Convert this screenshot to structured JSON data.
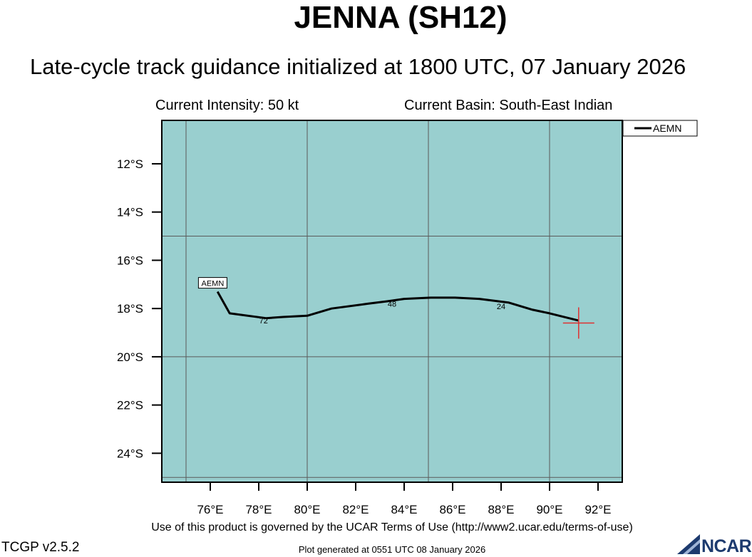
{
  "header": {
    "title": "JENNA (SH12)",
    "subtitle": "Late-cycle track guidance initialized at 1800 UTC, 07 January 2026"
  },
  "info": {
    "intensity": "Current Intensity: 50 kt",
    "basin": "Current Basin: South-East Indian"
  },
  "footer": {
    "terms": "Use of this product is governed by the UCAR Terms of Use (http://www2.ucar.edu/terms-of-use)",
    "version": "TCGP v2.5.2",
    "generated": "Plot generated at 0551 UTC   08 January 2026",
    "logo_text": "NCAR"
  },
  "chart_data": {
    "type": "line",
    "xlim": [
      74.0,
      93.0
    ],
    "ylim": [
      -25.2,
      -10.2
    ],
    "x_ticks": [
      76,
      78,
      80,
      82,
      84,
      86,
      88,
      90,
      92
    ],
    "x_tick_labels": [
      "76°E",
      "78°E",
      "80°E",
      "82°E",
      "84°E",
      "86°E",
      "88°E",
      "90°E",
      "92°E"
    ],
    "y_ticks": [
      -12,
      -14,
      -16,
      -18,
      -20,
      -22,
      -24
    ],
    "y_tick_labels": [
      "12°S",
      "14°S",
      "16°S",
      "18°S",
      "20°S",
      "22°S",
      "24°S"
    ],
    "gridlines_lon": [
      75,
      80,
      85,
      90
    ],
    "gridlines_lat": [
      -15,
      -20,
      -25
    ],
    "background_color": "#99cfcf",
    "grid_color": "#5a5a5a",
    "current_position": {
      "lon": 91.2,
      "lat": -18.6,
      "color": "#e03030"
    },
    "legend": {
      "entries": [
        "AEMN"
      ],
      "placement": "top-right outside"
    },
    "series": [
      {
        "name": "AEMN",
        "color": "#000000",
        "lon": [
          91.2,
          90.0,
          89.3,
          88.3,
          87.1,
          86.1,
          85.1,
          84.0,
          83.3,
          82.5,
          81.0,
          80.0,
          79.0,
          78.3,
          76.8,
          76.3
        ],
        "lat": [
          -18.5,
          -18.2,
          -18.05,
          -17.75,
          -17.6,
          -17.55,
          -17.55,
          -17.6,
          -17.7,
          -17.8,
          -18.0,
          -18.3,
          -18.35,
          -18.4,
          -18.2,
          -17.3
        ],
        "tau_labels": [
          {
            "text": "24",
            "lon": 88.0,
            "lat": -17.9
          },
          {
            "text": "48",
            "lon": 83.5,
            "lat": -17.8
          },
          {
            "text": "72",
            "lon": 78.2,
            "lat": -18.5
          }
        ],
        "track_label": {
          "text": "AEMN",
          "lon": 76.1,
          "lat": -16.95
        }
      }
    ]
  }
}
